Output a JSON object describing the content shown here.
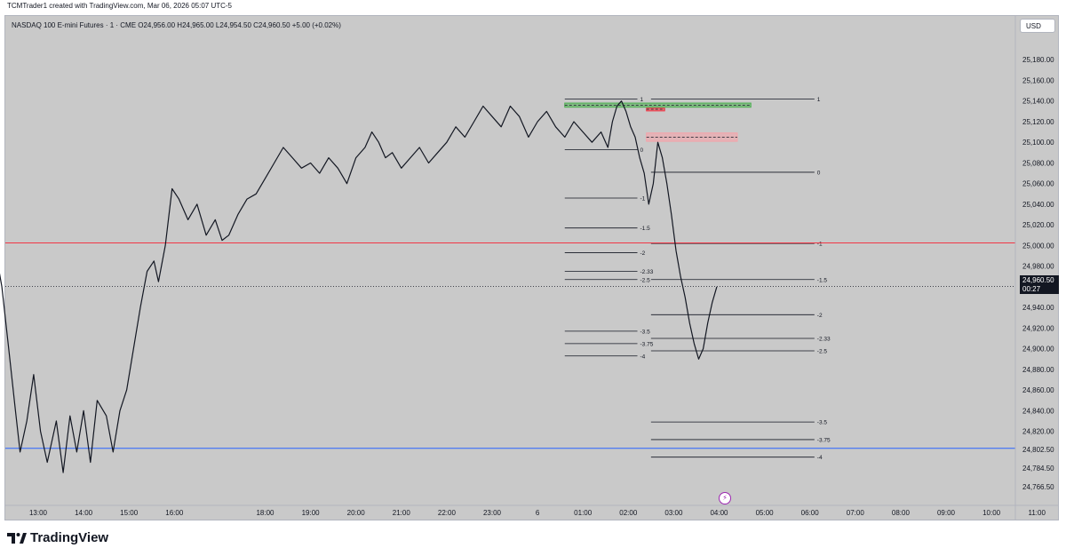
{
  "header": {
    "credit": "TCMTrader1 created with TradingView.com, Mar 06, 2026 05:07 UTC-5"
  },
  "symbol": {
    "line": "NASDAQ 100 E-mini Futures · 1 · CME  O24,956.00 H24,965.00 L24,954.50 C24,960.50 +5.00 (+0.02%)"
  },
  "currency": "USD",
  "last_price": {
    "price": "24,960.50",
    "countdown": "00:27"
  },
  "brand": {
    "name": "TradingView"
  },
  "chart_data": {
    "type": "candlestick",
    "instrument": "NASDAQ 100 E-mini Futures",
    "interval": "1",
    "exchange": "CME",
    "ohlc": {
      "open": 24956.0,
      "high": 24965.0,
      "low": 24954.5,
      "close": 24960.5,
      "change": 5.0,
      "change_pct": 0.02
    },
    "ylim": [
      24756,
      25200
    ],
    "y_ticks": [
      {
        "value": 25180,
        "label": "25,180.00"
      },
      {
        "value": 25160,
        "label": "25,160.00"
      },
      {
        "value": 25140,
        "label": "25,140.00"
      },
      {
        "value": 25120,
        "label": "25,120.00"
      },
      {
        "value": 25100,
        "label": "25,100.00"
      },
      {
        "value": 25080,
        "label": "25,080.00"
      },
      {
        "value": 25060,
        "label": "25,060.00"
      },
      {
        "value": 25040,
        "label": "25,040.00"
      },
      {
        "value": 25020,
        "label": "25,020.00"
      },
      {
        "value": 25000,
        "label": "25,000.00"
      },
      {
        "value": 24980,
        "label": "24,980.00"
      },
      {
        "value": 24940,
        "label": "24,940.00"
      },
      {
        "value": 24920,
        "label": "24,920.00"
      },
      {
        "value": 24900,
        "label": "24,900.00"
      },
      {
        "value": 24880,
        "label": "24,880.00"
      },
      {
        "value": 24860,
        "label": "24,860.00"
      },
      {
        "value": 24840,
        "label": "24,840.00"
      },
      {
        "value": 24820,
        "label": "24,820.00"
      },
      {
        "value": 24802.5,
        "label": "24,802.50"
      },
      {
        "value": 24784.5,
        "label": "24,784.50"
      },
      {
        "value": 24766.5,
        "label": "24,766.50"
      }
    ],
    "x_ticks": [
      {
        "t": 13,
        "label": "13:00"
      },
      {
        "t": 14,
        "label": "14:00"
      },
      {
        "t": 15,
        "label": "15:00"
      },
      {
        "t": 16,
        "label": "16:00"
      },
      {
        "t": 18,
        "label": "18:00"
      },
      {
        "t": 19,
        "label": "19:00"
      },
      {
        "t": 20,
        "label": "20:00"
      },
      {
        "t": 21,
        "label": "21:00"
      },
      {
        "t": 22,
        "label": "22:00"
      },
      {
        "t": 23,
        "label": "23:00"
      },
      {
        "t": 24,
        "label": "6"
      },
      {
        "t": 25,
        "label": "01:00"
      },
      {
        "t": 26,
        "label": "02:00"
      },
      {
        "t": 27,
        "label": "03:00"
      },
      {
        "t": 28,
        "label": "04:00"
      },
      {
        "t": 29,
        "label": "05:00"
      },
      {
        "t": 30,
        "label": "06:00"
      },
      {
        "t": 31,
        "label": "07:00"
      },
      {
        "t": 32,
        "label": "08:00"
      },
      {
        "t": 33,
        "label": "09:00"
      },
      {
        "t": 34,
        "label": "10:00"
      },
      {
        "t": 35,
        "label": "11:00"
      }
    ],
    "price_path": [
      [
        12.1,
        24985
      ],
      [
        12.2,
        24960
      ],
      [
        12.35,
        24900
      ],
      [
        12.5,
        24840
      ],
      [
        12.6,
        24800
      ],
      [
        12.75,
        24830
      ],
      [
        12.9,
        24875
      ],
      [
        13.05,
        24820
      ],
      [
        13.2,
        24790
      ],
      [
        13.4,
        24830
      ],
      [
        13.55,
        24780
      ],
      [
        13.7,
        24835
      ],
      [
        13.85,
        24800
      ],
      [
        14.0,
        24840
      ],
      [
        14.15,
        24790
      ],
      [
        14.3,
        24850
      ],
      [
        14.5,
        24835
      ],
      [
        14.65,
        24800
      ],
      [
        14.8,
        24840
      ],
      [
        14.95,
        24860
      ],
      [
        15.1,
        24900
      ],
      [
        15.25,
        24940
      ],
      [
        15.4,
        24975
      ],
      [
        15.55,
        24985
      ],
      [
        15.65,
        24965
      ],
      [
        15.8,
        25000
      ],
      [
        15.95,
        25055
      ],
      [
        16.1,
        25045
      ],
      [
        16.3,
        25025
      ],
      [
        16.5,
        25040
      ],
      [
        16.7,
        25010
      ],
      [
        16.9,
        25025
      ],
      [
        17.05,
        25005
      ],
      [
        17.2,
        25010
      ],
      [
        17.4,
        25030
      ],
      [
        17.6,
        25045
      ],
      [
        17.8,
        25050
      ],
      [
        18.0,
        25065
      ],
      [
        18.2,
        25080
      ],
      [
        18.4,
        25095
      ],
      [
        18.6,
        25085
      ],
      [
        18.8,
        25075
      ],
      [
        19.0,
        25080
      ],
      [
        19.2,
        25070
      ],
      [
        19.4,
        25085
      ],
      [
        19.6,
        25075
      ],
      [
        19.8,
        25060
      ],
      [
        20.0,
        25085
      ],
      [
        20.2,
        25095
      ],
      [
        20.35,
        25110
      ],
      [
        20.5,
        25100
      ],
      [
        20.65,
        25085
      ],
      [
        20.8,
        25090
      ],
      [
        21.0,
        25075
      ],
      [
        21.2,
        25085
      ],
      [
        21.4,
        25095
      ],
      [
        21.6,
        25080
      ],
      [
        21.8,
        25090
      ],
      [
        22.0,
        25100
      ],
      [
        22.2,
        25115
      ],
      [
        22.4,
        25105
      ],
      [
        22.6,
        25120
      ],
      [
        22.8,
        25135
      ],
      [
        23.0,
        25125
      ],
      [
        23.2,
        25115
      ],
      [
        23.4,
        25135
      ],
      [
        23.6,
        25125
      ],
      [
        23.8,
        25105
      ],
      [
        24.0,
        25120
      ],
      [
        24.2,
        25130
      ],
      [
        24.4,
        25115
      ],
      [
        24.6,
        25105
      ],
      [
        24.8,
        25120
      ],
      [
        25.0,
        25110
      ],
      [
        25.2,
        25100
      ],
      [
        25.4,
        25110
      ],
      [
        25.55,
        25095
      ],
      [
        25.65,
        25120
      ],
      [
        25.75,
        25135
      ],
      [
        25.85,
        25140
      ],
      [
        25.95,
        25130
      ],
      [
        26.05,
        25115
      ],
      [
        26.15,
        25105
      ],
      [
        26.25,
        25085
      ],
      [
        26.35,
        25070
      ],
      [
        26.45,
        25040
      ],
      [
        26.55,
        25060
      ],
      [
        26.65,
        25100
      ],
      [
        26.75,
        25085
      ],
      [
        26.85,
        25060
      ],
      [
        26.95,
        25030
      ],
      [
        27.05,
        24995
      ],
      [
        27.15,
        24970
      ],
      [
        27.25,
        24950
      ],
      [
        27.35,
        24925
      ],
      [
        27.45,
        24905
      ],
      [
        27.55,
        24890
      ],
      [
        27.65,
        24900
      ],
      [
        27.75,
        24925
      ],
      [
        27.85,
        24945
      ],
      [
        27.95,
        24960
      ]
    ],
    "horizontal_lines": [
      {
        "value": 25002.5,
        "color": "#f23645",
        "name": "red-level"
      },
      {
        "value": 24803.5,
        "color": "#2962ff",
        "name": "blue-level"
      },
      {
        "value": 24960.5,
        "color": "#131722",
        "style": "dotted",
        "name": "last-price-line"
      }
    ],
    "zones": [
      {
        "from": 25134,
        "to": 25138,
        "t0": 24.6,
        "t1": 28.7,
        "color": "#4caf50",
        "name": "green-zone"
      },
      {
        "from": 25131,
        "to": 25133,
        "t0": 26.4,
        "t1": 26.8,
        "color": "#f23645",
        "name": "red-small-zone"
      },
      {
        "from": 25101,
        "to": 25109,
        "t0": 26.4,
        "t1": 28.4,
        "color": "#f7a1a8",
        "name": "pink-zone"
      }
    ],
    "fib_left": {
      "t0": 24.6,
      "t1": 26.2,
      "levels": [
        {
          "label": "1",
          "value": 25142
        },
        {
          "label": "0",
          "value": 25093
        },
        {
          "label": "-1",
          "value": 25046
        },
        {
          "label": "-1.5",
          "value": 25017
        },
        {
          "label": "-2",
          "value": 24993
        },
        {
          "label": "-2.33",
          "value": 24975
        },
        {
          "label": "-2.5",
          "value": 24967
        },
        {
          "label": "-3.5",
          "value": 24917
        },
        {
          "label": "-3.75",
          "value": 24905
        },
        {
          "label": "-4",
          "value": 24893
        }
      ]
    },
    "fib_right": {
      "t0": 26.5,
      "t1": 30.1,
      "levels": [
        {
          "label": "1",
          "value": 25142
        },
        {
          "label": "0",
          "value": 25071
        },
        {
          "label": "-1",
          "value": 25002
        },
        {
          "label": "-1.5",
          "value": 24967
        },
        {
          "label": "-2",
          "value": 24933
        },
        {
          "label": "-2.33",
          "value": 24910
        },
        {
          "label": "-2.5",
          "value": 24898
        },
        {
          "label": "-3.5",
          "value": 24829
        },
        {
          "label": "-3.75",
          "value": 24812
        },
        {
          "label": "-4",
          "value": 24795
        }
      ]
    }
  }
}
